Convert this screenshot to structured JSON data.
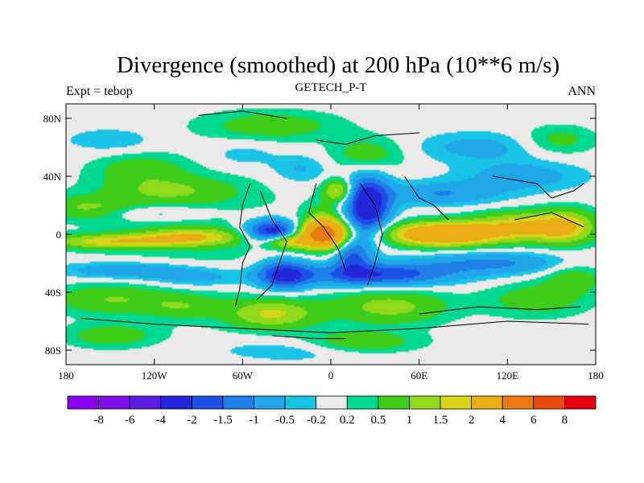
{
  "chart_data": {
    "type": "heatmap",
    "title": "Divergence (smoothed) at 200 hPa (10**6 m/s)",
    "subtitle_left": "Expt = tebop",
    "subtitle_center": "GETECH_P-T",
    "subtitle_right": "ANN",
    "x_range": [
      -180,
      180
    ],
    "y_range": [
      -90,
      90
    ],
    "x_ticks": [
      {
        "value": -180,
        "label": "180"
      },
      {
        "value": -120,
        "label": "120W"
      },
      {
        "value": -60,
        "label": "60W"
      },
      {
        "value": 0,
        "label": "0"
      },
      {
        "value": 60,
        "label": "60E"
      },
      {
        "value": 120,
        "label": "120E"
      },
      {
        "value": 180,
        "label": "180"
      }
    ],
    "y_ticks": [
      {
        "value": 80,
        "label": "80N"
      },
      {
        "value": 40,
        "label": "40N"
      },
      {
        "value": 0,
        "label": "0"
      },
      {
        "value": -40,
        "label": "40S"
      },
      {
        "value": -80,
        "label": "80S"
      }
    ],
    "colorbar": {
      "colors": [
        "#8a00f0",
        "#7a0fe6",
        "#5a1fe0",
        "#2626d9",
        "#1c50e6",
        "#2080e8",
        "#1ea6e8",
        "#1ac4e6",
        "#eaeaea",
        "#00d890",
        "#3ecd1a",
        "#90d81c",
        "#d8d418",
        "#e8ac14",
        "#e87a10",
        "#e84a10",
        "#e80010"
      ],
      "labels": [
        "-8",
        "-6",
        "-4",
        "-2",
        "-1.5",
        "-1",
        "-0.5",
        "-0.2",
        "0.2",
        "0.5",
        "1",
        "1.5",
        "2",
        "4",
        "6",
        "8"
      ]
    },
    "blobs": [
      {
        "lon": -150,
        "lat": -5,
        "rx": 40,
        "ry": 5,
        "v": 1.7
      },
      {
        "lon": -95,
        "lat": -2,
        "rx": 35,
        "ry": 6,
        "v": 1.8
      },
      {
        "lon": -165,
        "lat": 18,
        "rx": 30,
        "ry": 8,
        "v": 1.0
      },
      {
        "lon": -110,
        "lat": 30,
        "rx": 45,
        "ry": 10,
        "v": 0.9
      },
      {
        "lon": -120,
        "lat": 15,
        "rx": 40,
        "ry": 5,
        "v": -0.6
      },
      {
        "lon": -140,
        "lat": -25,
        "rx": 45,
        "ry": 6,
        "v": -1.0
      },
      {
        "lon": -90,
        "lat": -30,
        "rx": 35,
        "ry": 7,
        "v": -0.8
      },
      {
        "lon": -150,
        "lat": -45,
        "rx": 40,
        "ry": 10,
        "v": 0.9
      },
      {
        "lon": -100,
        "lat": -50,
        "rx": 25,
        "ry": 8,
        "v": 0.7
      },
      {
        "lon": -130,
        "lat": 45,
        "rx": 30,
        "ry": 10,
        "v": 0.7
      },
      {
        "lon": -40,
        "lat": 2,
        "rx": 18,
        "ry": 8,
        "v": -2.6
      },
      {
        "lon": -32,
        "lat": -28,
        "rx": 18,
        "ry": 10,
        "v": -2.2
      },
      {
        "lon": -5,
        "lat": 0,
        "rx": 15,
        "ry": 9,
        "v": 5.0
      },
      {
        "lon": -30,
        "lat": -5,
        "rx": 15,
        "ry": 5,
        "v": 2.0
      },
      {
        "lon": 5,
        "lat": 30,
        "rx": 10,
        "ry": 8,
        "v": 1.8
      },
      {
        "lon": -5,
        "lat": 10,
        "rx": 12,
        "ry": 12,
        "v": 0.8
      },
      {
        "lon": 15,
        "lat": -15,
        "rx": 12,
        "ry": 12,
        "v": -1.5
      },
      {
        "lon": 25,
        "lat": 20,
        "rx": 15,
        "ry": 20,
        "v": -2.8
      },
      {
        "lon": 30,
        "lat": -28,
        "rx": 50,
        "ry": 8,
        "v": -2.0
      },
      {
        "lon": 75,
        "lat": 0,
        "rx": 35,
        "ry": 8,
        "v": 3.5
      },
      {
        "lon": 130,
        "lat": 5,
        "rx": 35,
        "ry": 10,
        "v": 2.0
      },
      {
        "lon": 160,
        "lat": 5,
        "rx": 20,
        "ry": 12,
        "v": 1.5
      },
      {
        "lon": 110,
        "lat": -20,
        "rx": 50,
        "ry": 8,
        "v": -1.1
      },
      {
        "lon": 75,
        "lat": 28,
        "rx": 40,
        "ry": 8,
        "v": -1.0
      },
      {
        "lon": 130,
        "lat": 40,
        "rx": 40,
        "ry": 10,
        "v": -0.8
      },
      {
        "lon": 100,
        "lat": 60,
        "rx": 40,
        "ry": 10,
        "v": -0.7
      },
      {
        "lon": 25,
        "lat": 55,
        "rx": 25,
        "ry": 12,
        "v": 0.8
      },
      {
        "lon": -40,
        "lat": 75,
        "rx": 45,
        "ry": 10,
        "v": 0.8
      },
      {
        "lon": -150,
        "lat": 65,
        "rx": 30,
        "ry": 8,
        "v": -0.5
      },
      {
        "lon": -60,
        "lat": 55,
        "rx": 25,
        "ry": 10,
        "v": -0.4
      },
      {
        "lon": -20,
        "lat": 45,
        "rx": 20,
        "ry": 10,
        "v": -0.6
      },
      {
        "lon": 140,
        "lat": -45,
        "rx": 35,
        "ry": 12,
        "v": 0.8
      },
      {
        "lon": 40,
        "lat": -50,
        "rx": 40,
        "ry": 12,
        "v": 1.2
      },
      {
        "lon": -40,
        "lat": -55,
        "rx": 30,
        "ry": 10,
        "v": 1.5
      },
      {
        "lon": -20,
        "lat": -80,
        "rx": 60,
        "ry": 8,
        "v": -0.5
      },
      {
        "lon": 20,
        "lat": -75,
        "rx": 40,
        "ry": 8,
        "v": 1.0
      },
      {
        "lon": -150,
        "lat": -70,
        "rx": 30,
        "ry": 8,
        "v": 0.8
      },
      {
        "lon": 165,
        "lat": -30,
        "rx": 20,
        "ry": 10,
        "v": 0.8
      },
      {
        "lon": 155,
        "lat": 65,
        "rx": 25,
        "ry": 10,
        "v": 0.7
      },
      {
        "lon": -90,
        "lat": -5,
        "rx": 80,
        "ry": 60,
        "v": 0.3
      }
    ],
    "coastlines": [
      [
        [
          -55,
          35
        ],
        [
          -60,
          20
        ],
        [
          -62,
          5
        ],
        [
          -55,
          -8
        ],
        [
          -60,
          -20
        ],
        [
          -62,
          -38
        ],
        [
          -65,
          -50
        ]
      ],
      [
        [
          -48,
          30
        ],
        [
          -40,
          10
        ],
        [
          -30,
          -5
        ],
        [
          -35,
          -20
        ],
        [
          -40,
          -35
        ],
        [
          -50,
          -45
        ]
      ],
      [
        [
          -10,
          35
        ],
        [
          -15,
          15
        ],
        [
          -5,
          5
        ],
        [
          5,
          -10
        ],
        [
          10,
          -25
        ]
      ],
      [
        [
          20,
          35
        ],
        [
          30,
          20
        ],
        [
          35,
          0
        ],
        [
          30,
          -20
        ],
        [
          25,
          -35
        ]
      ],
      [
        [
          50,
          40
        ],
        [
          60,
          25
        ],
        [
          70,
          20
        ],
        [
          80,
          10
        ]
      ],
      [
        [
          -170,
          -58
        ],
        [
          -120,
          -62
        ],
        [
          -60,
          -65
        ],
        [
          0,
          -68
        ],
        [
          60,
          -65
        ],
        [
          120,
          -60
        ],
        [
          175,
          -62
        ]
      ],
      [
        [
          -40,
          -70
        ],
        [
          -10,
          -72
        ],
        [
          10,
          -72
        ]
      ],
      [
        [
          60,
          -55
        ],
        [
          100,
          -50
        ],
        [
          140,
          -52
        ],
        [
          170,
          -50
        ]
      ],
      [
        [
          110,
          40
        ],
        [
          140,
          35
        ],
        [
          150,
          25
        ],
        [
          165,
          30
        ],
        [
          172,
          35
        ]
      ],
      [
        [
          125,
          10
        ],
        [
          150,
          15
        ],
        [
          172,
          5
        ]
      ],
      [
        [
          -90,
          82
        ],
        [
          -60,
          85
        ],
        [
          -30,
          80
        ]
      ],
      [
        [
          -10,
          65
        ],
        [
          10,
          62
        ],
        [
          30,
          68
        ],
        [
          60,
          70
        ]
      ]
    ]
  }
}
